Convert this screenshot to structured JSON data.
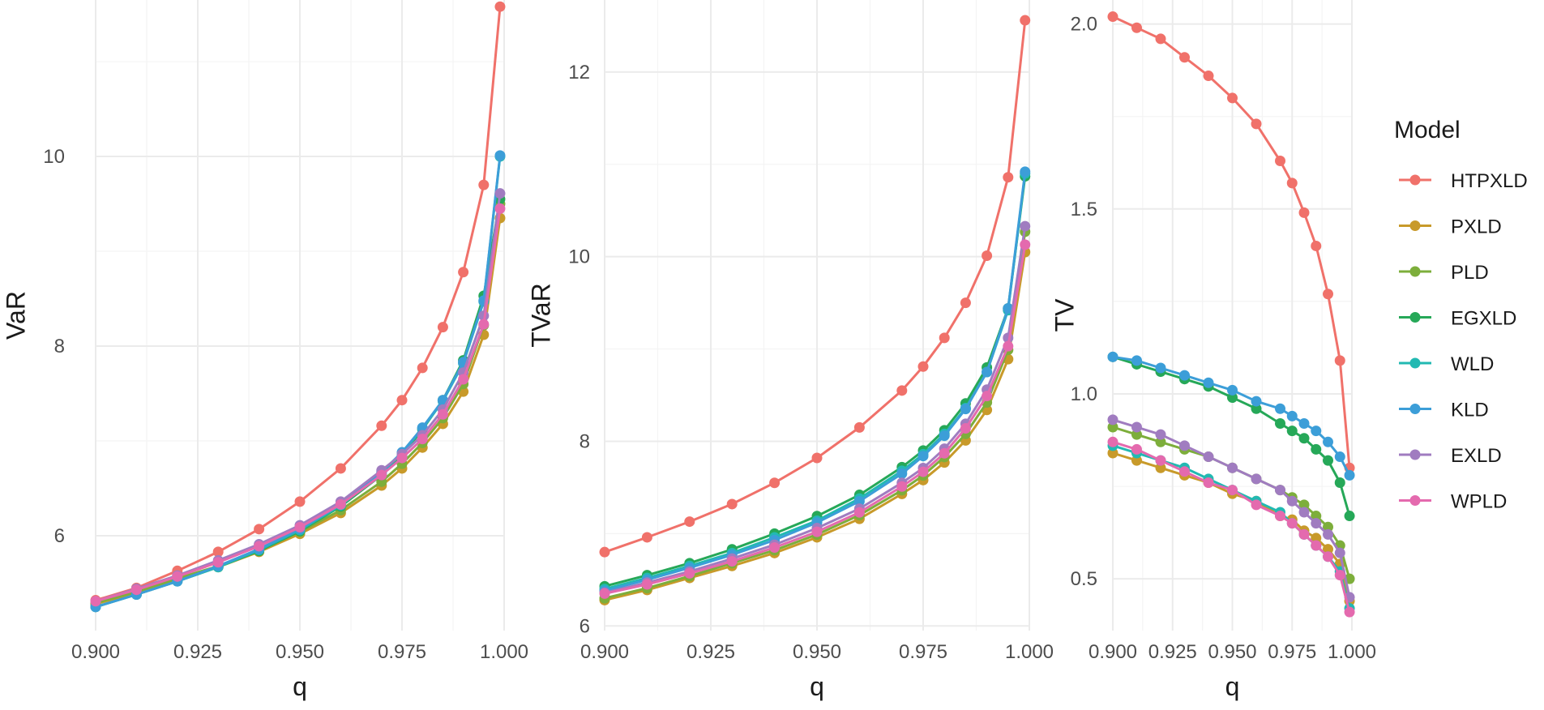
{
  "chart_data": [
    {
      "type": "line",
      "panel": "VaR",
      "xlabel": "q",
      "ylabel": "VaR",
      "xlim": [
        0.9,
        1.0
      ],
      "ylim": [
        5.0,
        11.65
      ],
      "xticks": [
        0.9,
        0.925,
        0.95,
        0.975,
        1.0
      ],
      "xtick_labels": [
        "0.900",
        "0.925",
        "0.950",
        "0.975",
        "1.000"
      ],
      "yticks": [
        6,
        8,
        10
      ],
      "ytick_labels": [
        "6",
        "8",
        "10"
      ],
      "x": [
        0.9,
        0.91,
        0.92,
        0.93,
        0.94,
        0.95,
        0.96,
        0.97,
        0.975,
        0.98,
        0.985,
        0.99,
        0.995,
        0.999
      ],
      "series": [
        {
          "name": "HTPXLD",
          "values": [
            5.32,
            5.45,
            5.63,
            5.83,
            6.07,
            6.36,
            6.71,
            7.16,
            7.43,
            7.77,
            8.2,
            8.78,
            9.7,
            11.58
          ]
        },
        {
          "name": "PXLD",
          "values": [
            5.28,
            5.4,
            5.54,
            5.67,
            5.83,
            6.02,
            6.24,
            6.53,
            6.71,
            6.93,
            7.18,
            7.52,
            8.12,
            9.35
          ]
        },
        {
          "name": "PLD",
          "values": [
            5.29,
            5.41,
            5.55,
            5.68,
            5.85,
            6.04,
            6.27,
            6.57,
            6.76,
            6.98,
            7.24,
            7.6,
            8.22,
            9.5
          ]
        },
        {
          "name": "EGXLD",
          "values": [
            5.25,
            5.38,
            5.52,
            5.67,
            5.84,
            6.05,
            6.31,
            6.64,
            6.85,
            7.12,
            7.43,
            7.85,
            8.53,
            9.55
          ]
        },
        {
          "name": "WLD",
          "values": [
            5.25,
            5.38,
            5.52,
            5.67,
            5.85,
            6.06,
            6.32,
            6.66,
            6.87,
            7.13,
            7.42,
            7.82,
            8.47,
            10.0
          ]
        },
        {
          "name": "KLD",
          "values": [
            5.25,
            5.38,
            5.52,
            5.68,
            5.86,
            6.07,
            6.33,
            6.67,
            6.88,
            7.14,
            7.43,
            7.83,
            8.48,
            10.01
          ]
        },
        {
          "name": "EXLD",
          "values": [
            5.31,
            5.44,
            5.58,
            5.74,
            5.91,
            6.11,
            6.36,
            6.69,
            6.86,
            7.06,
            7.33,
            7.72,
            8.32,
            9.61
          ]
        },
        {
          "name": "WPLD",
          "values": [
            5.31,
            5.43,
            5.57,
            5.72,
            5.89,
            6.09,
            6.33,
            6.64,
            6.82,
            7.02,
            7.28,
            7.65,
            8.23,
            9.45
          ]
        }
      ]
    },
    {
      "type": "line",
      "panel": "TVaR",
      "xlabel": "q",
      "ylabel": "TVaR",
      "xlim": [
        0.9,
        1.0
      ],
      "ylim": [
        5.95,
        12.78
      ],
      "xticks": [
        0.9,
        0.925,
        0.95,
        0.975,
        1.0
      ],
      "xtick_labels": [
        "0.900",
        "0.925",
        "0.950",
        "0.975",
        "1.000"
      ],
      "yticks": [
        6,
        8,
        10,
        12
      ],
      "ytick_labels": [
        "6",
        "8",
        "10",
        "12"
      ],
      "x": [
        0.9,
        0.91,
        0.92,
        0.93,
        0.94,
        0.95,
        0.96,
        0.97,
        0.975,
        0.98,
        0.985,
        0.99,
        0.995,
        0.999
      ],
      "series": [
        {
          "name": "HTPXLD",
          "values": [
            6.8,
            6.96,
            7.13,
            7.32,
            7.55,
            7.82,
            8.15,
            8.55,
            8.81,
            9.12,
            9.5,
            10.01,
            10.86,
            12.56
          ]
        },
        {
          "name": "PXLD",
          "values": [
            6.28,
            6.39,
            6.52,
            6.65,
            6.79,
            6.96,
            7.16,
            7.43,
            7.58,
            7.77,
            8.01,
            8.34,
            8.89,
            10.05
          ]
        },
        {
          "name": "PLD",
          "values": [
            6.3,
            6.41,
            6.54,
            6.68,
            6.82,
            6.99,
            7.2,
            7.47,
            7.63,
            7.83,
            8.08,
            8.42,
            8.99,
            10.27
          ]
        },
        {
          "name": "EGXLD",
          "values": [
            6.43,
            6.55,
            6.68,
            6.83,
            7.0,
            7.19,
            7.42,
            7.72,
            7.9,
            8.12,
            8.41,
            8.8,
            9.44,
            10.87
          ]
        },
        {
          "name": "WLD",
          "values": [
            6.4,
            6.52,
            6.65,
            6.79,
            6.96,
            7.14,
            7.38,
            7.68,
            7.86,
            8.08,
            8.36,
            8.75,
            9.42,
            10.9
          ]
        },
        {
          "name": "KLD",
          "values": [
            6.38,
            6.5,
            6.63,
            6.77,
            6.93,
            7.12,
            7.35,
            7.65,
            7.84,
            8.06,
            8.35,
            8.75,
            9.44,
            10.92
          ]
        },
        {
          "name": "EXLD",
          "values": [
            6.36,
            6.47,
            6.59,
            6.73,
            6.88,
            7.06,
            7.27,
            7.55,
            7.71,
            7.92,
            8.19,
            8.56,
            9.12,
            10.33
          ]
        },
        {
          "name": "WPLD",
          "values": [
            6.35,
            6.45,
            6.57,
            6.7,
            6.85,
            7.02,
            7.23,
            7.51,
            7.67,
            7.87,
            8.14,
            8.49,
            9.03,
            10.13
          ]
        }
      ]
    },
    {
      "type": "line",
      "panel": "TV",
      "xlabel": "q",
      "ylabel": "TV",
      "xlim": [
        0.9,
        1.0
      ],
      "ylim": [
        0.36,
        2.065
      ],
      "xticks": [
        0.9,
        0.925,
        0.95,
        0.975,
        1.0
      ],
      "xtick_labels": [
        "0.900",
        "0.925",
        "0.950",
        "0.975",
        "1.000"
      ],
      "yticks": [
        0.5,
        1.0,
        1.5,
        2.0
      ],
      "ytick_labels": [
        "0.5",
        "1.0",
        "1.5",
        "2.0"
      ],
      "x": [
        0.9,
        0.91,
        0.92,
        0.93,
        0.94,
        0.95,
        0.96,
        0.97,
        0.975,
        0.98,
        0.985,
        0.99,
        0.995,
        0.999
      ],
      "series": [
        {
          "name": "HTPXLD",
          "values": [
            2.02,
            1.99,
            1.96,
            1.91,
            1.86,
            1.8,
            1.73,
            1.63,
            1.57,
            1.49,
            1.4,
            1.27,
            1.09,
            0.8
          ]
        },
        {
          "name": "PXLD",
          "values": [
            0.84,
            0.82,
            0.8,
            0.78,
            0.76,
            0.73,
            0.71,
            0.67,
            0.66,
            0.63,
            0.61,
            0.58,
            0.54,
            0.44
          ]
        },
        {
          "name": "PLD",
          "values": [
            0.91,
            0.89,
            0.87,
            0.85,
            0.83,
            0.8,
            0.77,
            0.74,
            0.72,
            0.7,
            0.67,
            0.64,
            0.59,
            0.5
          ]
        },
        {
          "name": "EGXLD",
          "values": [
            1.1,
            1.08,
            1.06,
            1.04,
            1.02,
            0.99,
            0.96,
            0.92,
            0.9,
            0.88,
            0.85,
            0.82,
            0.76,
            0.67
          ]
        },
        {
          "name": "WLD",
          "values": [
            0.86,
            0.84,
            0.82,
            0.8,
            0.77,
            0.74,
            0.71,
            0.68,
            0.65,
            0.62,
            0.59,
            0.56,
            0.52,
            0.42
          ]
        },
        {
          "name": "KLD",
          "values": [
            1.1,
            1.09,
            1.07,
            1.05,
            1.03,
            1.01,
            0.98,
            0.96,
            0.94,
            0.92,
            0.9,
            0.87,
            0.83,
            0.78
          ]
        },
        {
          "name": "EXLD",
          "values": [
            0.93,
            0.91,
            0.89,
            0.86,
            0.83,
            0.8,
            0.77,
            0.74,
            0.71,
            0.68,
            0.65,
            0.62,
            0.57,
            0.45
          ]
        },
        {
          "name": "WPLD",
          "values": [
            0.87,
            0.85,
            0.82,
            0.79,
            0.76,
            0.74,
            0.7,
            0.67,
            0.65,
            0.62,
            0.59,
            0.56,
            0.51,
            0.41
          ]
        }
      ]
    }
  ],
  "legend": {
    "title": "Model",
    "entries": [
      "HTPXLD",
      "PXLD",
      "PLD",
      "EGXLD",
      "WLD",
      "KLD",
      "EXLD",
      "WPLD"
    ]
  },
  "colors": {
    "HTPXLD": "#F0716A",
    "PXLD": "#C89A2A",
    "PLD": "#7DAE3B",
    "EGXLD": "#26A858",
    "WLD": "#22B9B2",
    "KLD": "#3C9ED8",
    "EXLD": "#A07CC0",
    "WPLD": "#E46AAE"
  }
}
